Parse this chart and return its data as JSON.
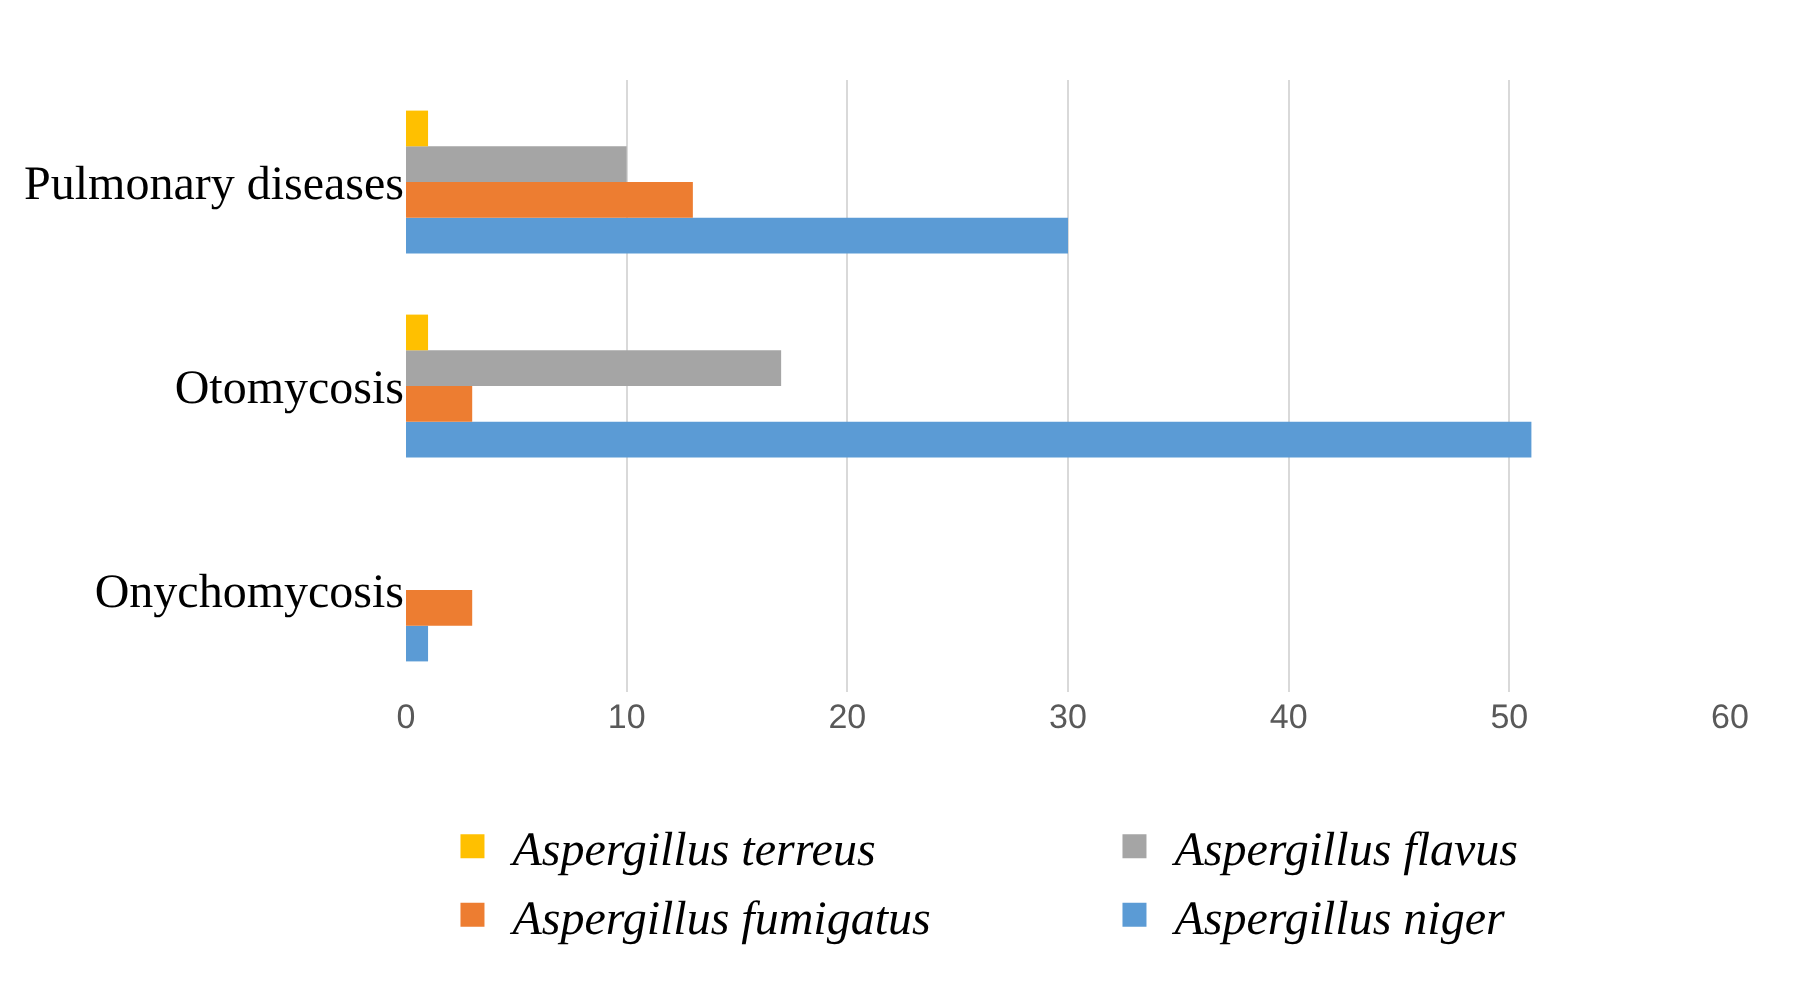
{
  "chart_data": {
    "type": "bar",
    "orientation": "horizontal",
    "categories": [
      "Pulmonary diseases",
      "Otomycosis",
      "Onychomycosis"
    ],
    "series": [
      {
        "name": "Aspergillus niger",
        "color": "#5b9bd5",
        "values": [
          30,
          51,
          1
        ]
      },
      {
        "name": "Aspergillus fumigatus",
        "color": "#ed7d31",
        "values": [
          13,
          3,
          3
        ]
      },
      {
        "name": "Aspergillus flavus",
        "color": "#a5a5a5",
        "values": [
          10,
          17,
          0
        ]
      },
      {
        "name": "Aspergillus terreus",
        "color": "#ffc000",
        "values": [
          1,
          1,
          0
        ]
      }
    ],
    "xlim": [
      0,
      60
    ],
    "xticks": [
      0,
      10,
      20,
      30,
      40,
      50,
      60
    ],
    "grid": "x",
    "legend": "bottom"
  }
}
